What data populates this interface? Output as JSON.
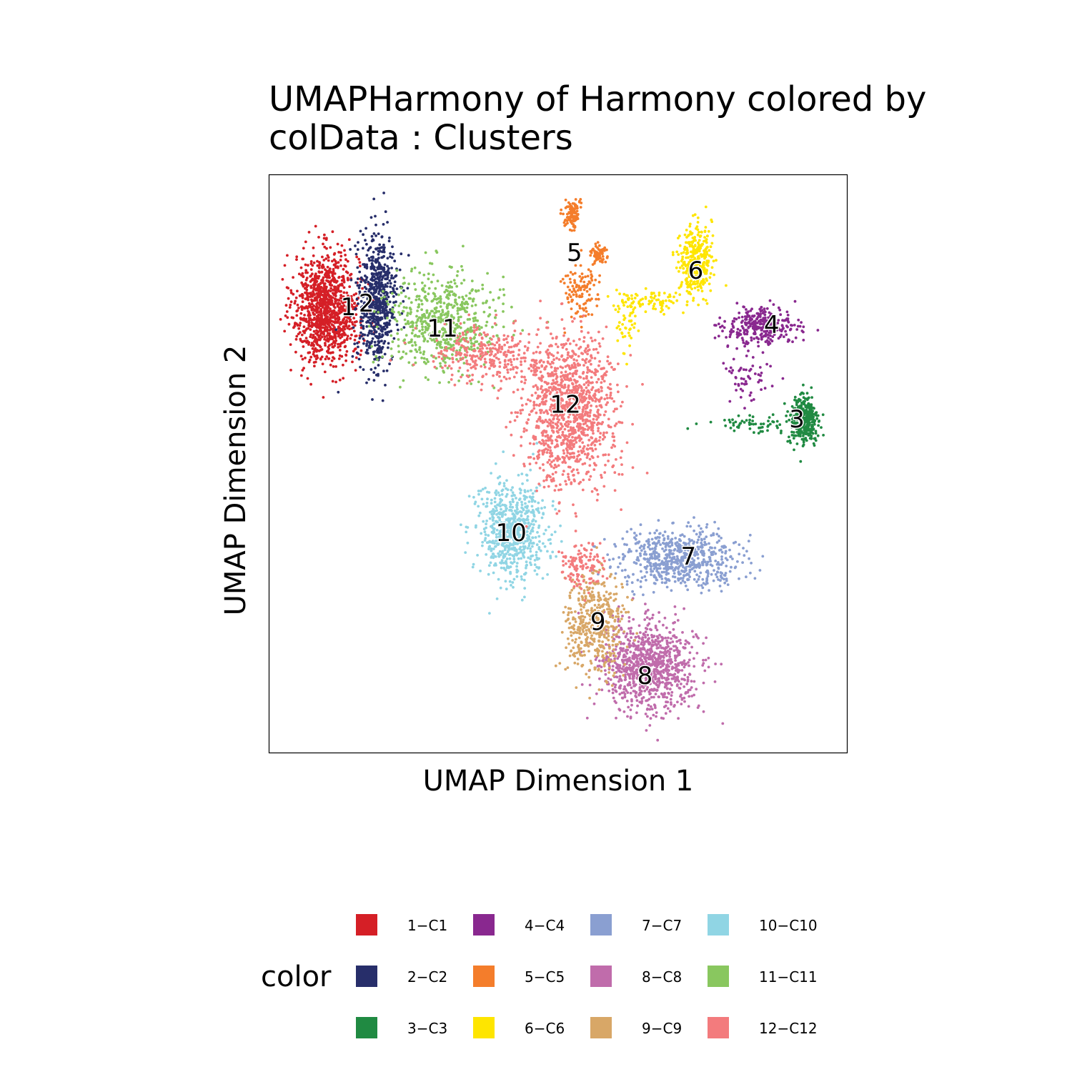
{
  "chart_data": {
    "type": "scatter",
    "title": "UMAPHarmony of Harmony  colored by\ncolData :  Clusters",
    "xlabel": "UMAP Dimension 1",
    "ylabel": "UMAP Dimension 2",
    "xlim": [
      -8,
      8
    ],
    "ylim": [
      -8,
      8
    ],
    "grid": false,
    "legend": {
      "title": "color",
      "placement": "bottom"
    },
    "clusters": [
      {
        "id": "1",
        "legend": "1−C1",
        "color": "#D51F26",
        "label": "1",
        "label_at": [
          -5.8,
          4.3
        ],
        "blobs": [
          [
            -6.4,
            4.3,
            0.9,
            1.5,
            1100
          ]
        ]
      },
      {
        "id": "2",
        "legend": "2−C2",
        "color": "#272E6A",
        "label": "2",
        "label_at": [
          -5.3,
          4.4
        ],
        "blobs": [
          [
            -5.0,
            4.5,
            0.55,
            1.8,
            650
          ]
        ]
      },
      {
        "id": "3",
        "legend": "3−C3",
        "color": "#208A42",
        "label": "3",
        "label_at": [
          6.6,
          1.2
        ],
        "blobs": [
          [
            6.8,
            1.2,
            0.4,
            0.7,
            350
          ],
          [
            5.4,
            1.1,
            1.2,
            0.25,
            60
          ]
        ]
      },
      {
        "id": "4",
        "legend": "4−C4",
        "color": "#89288F",
        "label": "4",
        "label_at": [
          5.9,
          3.8
        ],
        "blobs": [
          [
            5.6,
            3.8,
            1.0,
            0.5,
            300
          ],
          [
            5.3,
            2.5,
            0.7,
            0.8,
            60
          ]
        ]
      },
      {
        "id": "5",
        "legend": "5−C5",
        "color": "#F47D2B",
        "label": "5",
        "label_at": [
          0.45,
          5.8
        ],
        "blobs": [
          [
            0.4,
            6.9,
            0.2,
            0.4,
            110
          ],
          [
            1.1,
            5.8,
            0.2,
            0.3,
            70
          ],
          [
            0.6,
            4.8,
            0.5,
            0.8,
            110
          ]
        ]
      },
      {
        "id": "6",
        "legend": "6−C6",
        "color": "#FEE500",
        "label": "6",
        "label_at": [
          3.8,
          5.3
        ],
        "blobs": [
          [
            3.8,
            5.6,
            0.45,
            1.0,
            340
          ],
          [
            2.5,
            4.5,
            0.9,
            0.3,
            90
          ],
          [
            1.9,
            3.8,
            0.3,
            0.8,
            40
          ]
        ]
      },
      {
        "id": "7",
        "legend": "7−C7",
        "color": "#8A9FD1",
        "label": "7",
        "label_at": [
          3.6,
          -2.6
        ],
        "blobs": [
          [
            3.4,
            -2.6,
            1.7,
            0.75,
            650
          ]
        ]
      },
      {
        "id": "8",
        "legend": "8−C8",
        "color": "#C06CAB",
        "label": "8",
        "label_at": [
          2.4,
          -5.9
        ],
        "blobs": [
          [
            2.5,
            -5.6,
            1.3,
            1.2,
            950
          ]
        ]
      },
      {
        "id": "9",
        "legend": "9−C9",
        "color": "#D8A767",
        "label": "9",
        "label_at": [
          1.1,
          -4.4
        ],
        "blobs": [
          [
            1.0,
            -4.4,
            0.8,
            1.4,
            450
          ]
        ]
      },
      {
        "id": "10",
        "legend": "10−C10",
        "color": "#90D5E4",
        "label": "10",
        "label_at": [
          -1.3,
          -1.95
        ],
        "blobs": [
          [
            -1.3,
            -1.9,
            0.95,
            1.4,
            650
          ]
        ]
      },
      {
        "id": "11",
        "legend": "11−C11",
        "color": "#89C75F",
        "label": "11",
        "label_at": [
          -3.2,
          3.7
        ],
        "blobs": [
          [
            -3.2,
            3.9,
            1.6,
            1.3,
            600
          ]
        ]
      },
      {
        "id": "12",
        "legend": "12−C12",
        "color": "#F37B7D",
        "label": "12",
        "label_at": [
          0.2,
          1.6
        ],
        "blobs": [
          [
            0.3,
            1.5,
            1.3,
            2.0,
            1150
          ],
          [
            -2.0,
            3.0,
            1.5,
            0.8,
            300
          ],
          [
            0.6,
            -2.8,
            0.6,
            0.7,
            120
          ]
        ]
      }
    ]
  }
}
